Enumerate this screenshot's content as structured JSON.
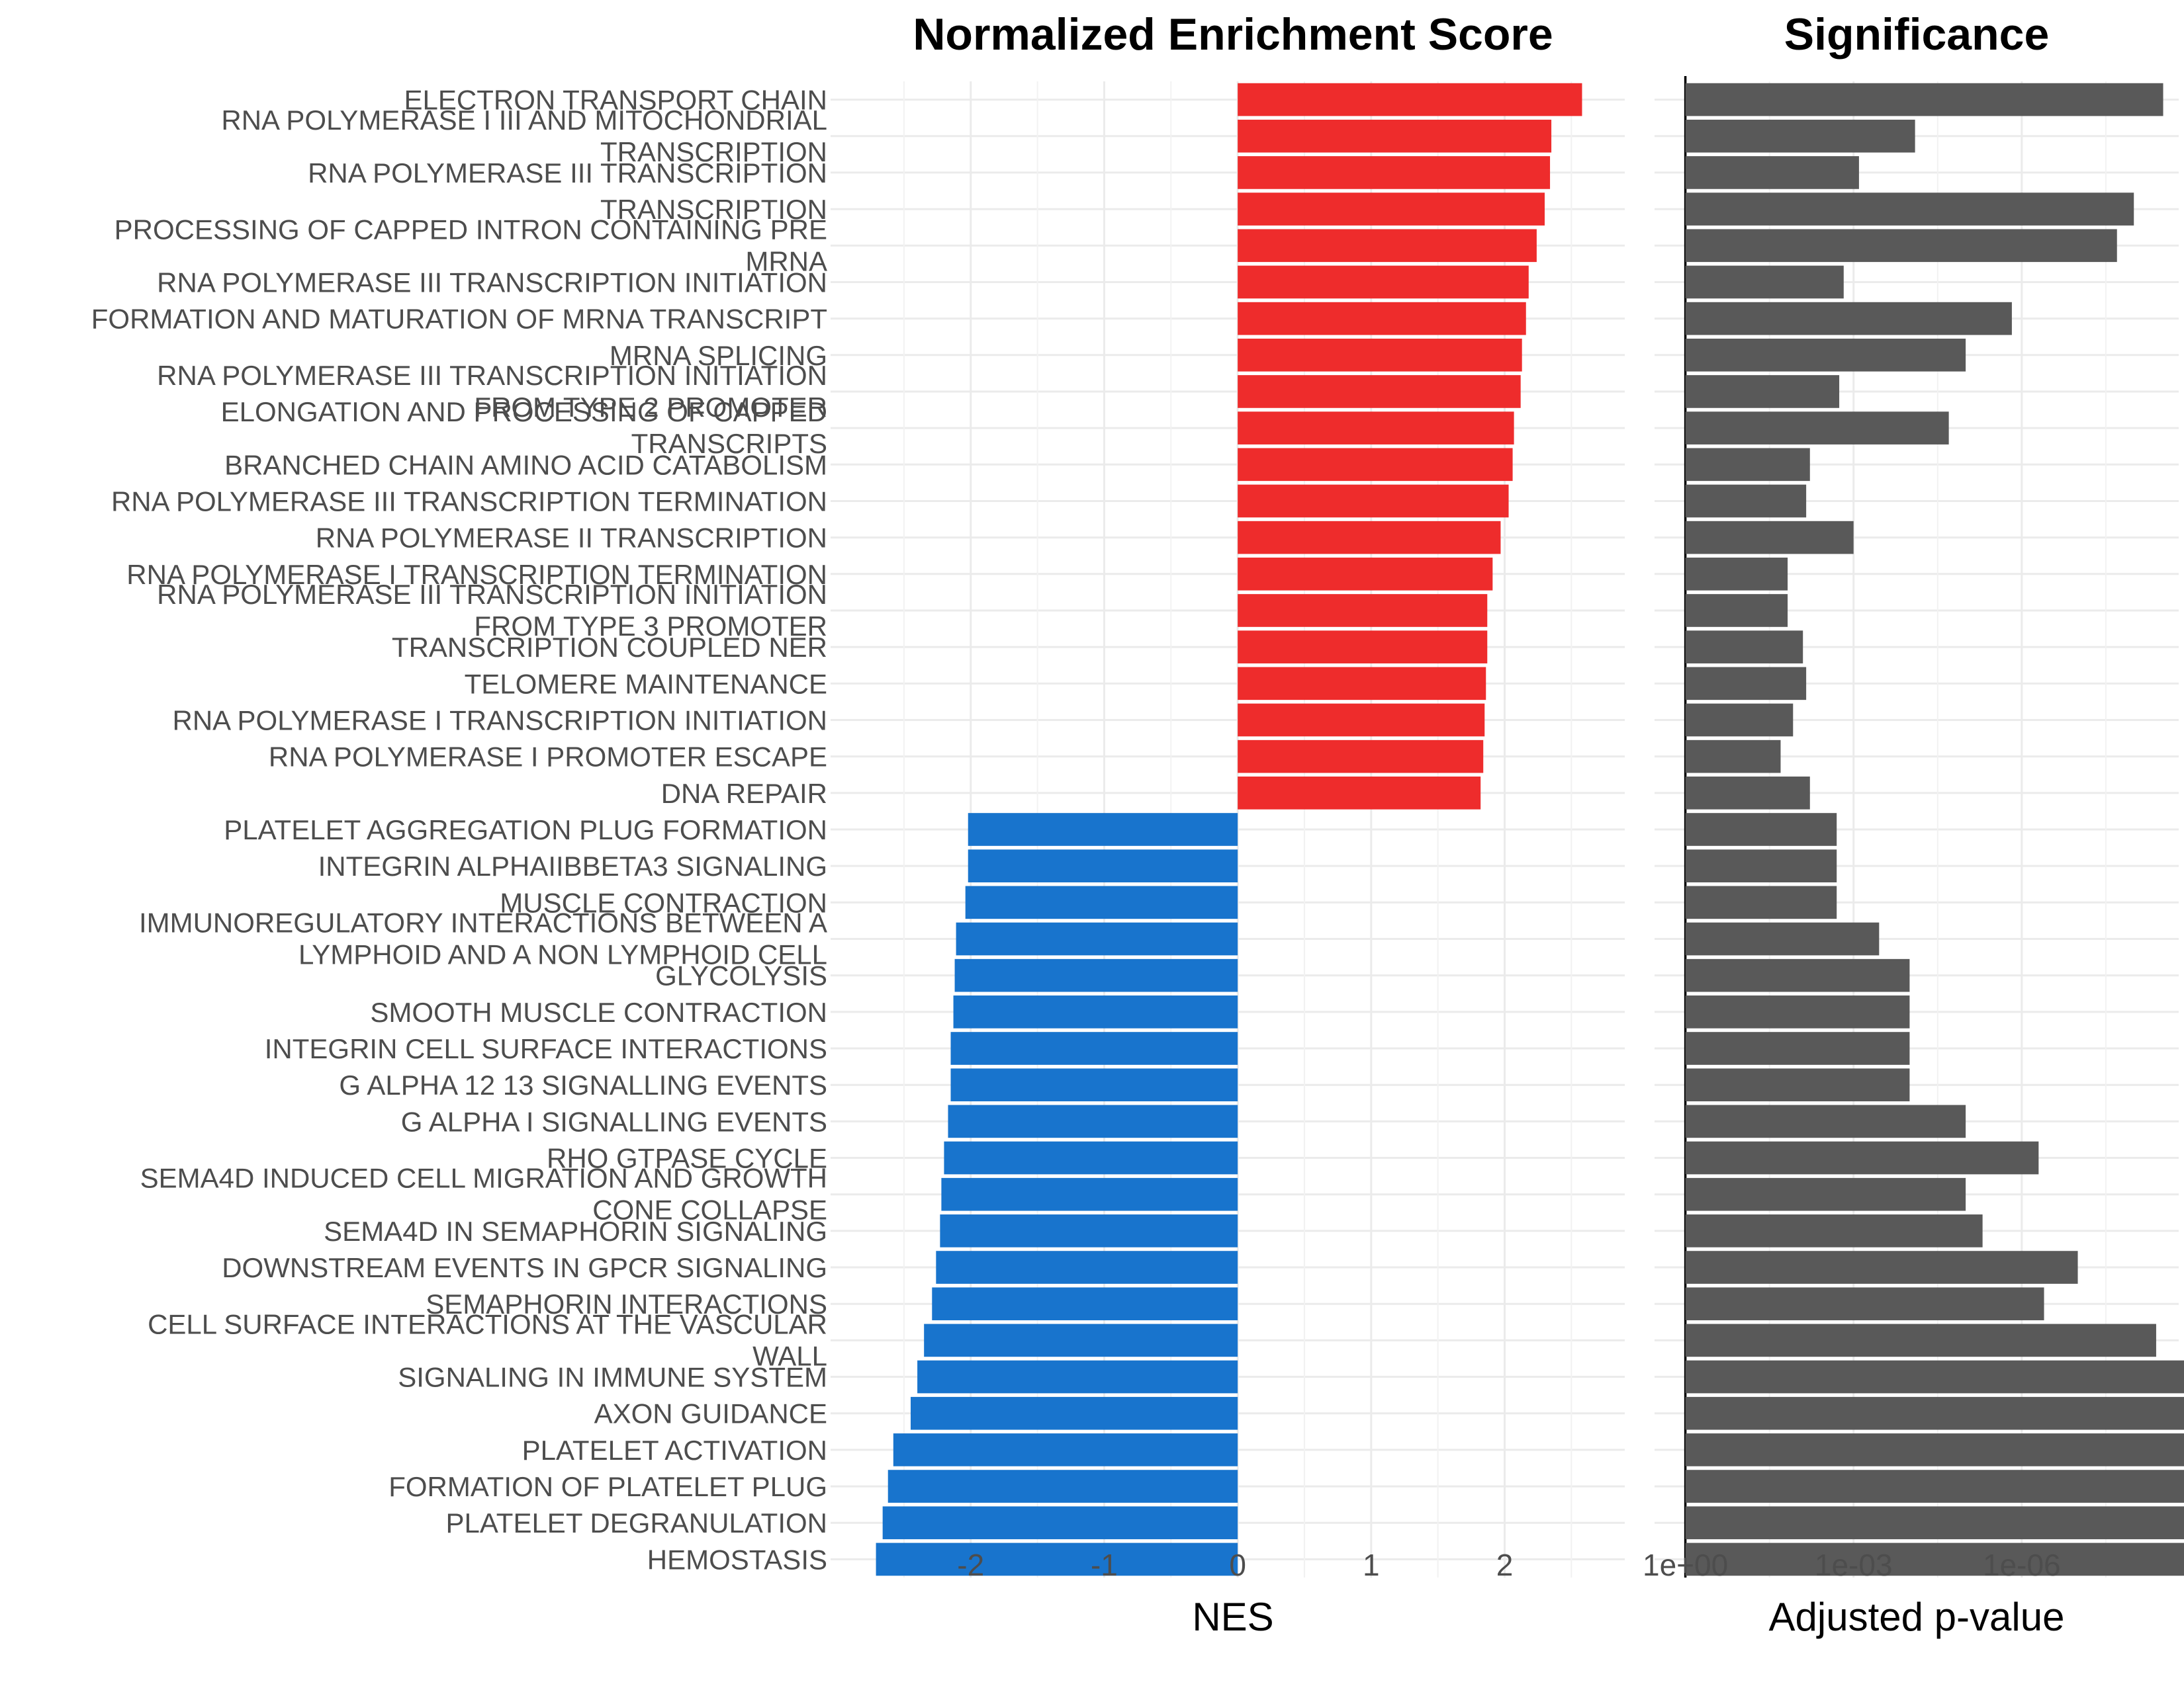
{
  "chart_data": [
    {
      "type": "bar",
      "orientation": "horizontal",
      "title": "Normalized Enrichment Score",
      "xlabel": "NES",
      "ylabel": "",
      "xlim": [
        -3.05,
        2.9
      ],
      "x_ticks": [
        -2,
        -1,
        0,
        1,
        2
      ],
      "x_tick_labels": [
        "-2",
        "-1",
        "0",
        "1",
        "2"
      ],
      "grid": true,
      "colors": {
        "positive": "#ee2c2c",
        "negative": "#1874cd"
      },
      "categories": [
        [
          "ELECTRON TRANSPORT CHAIN"
        ],
        [
          "RNA POLYMERASE I III AND MITOCHONDRIAL",
          "TRANSCRIPTION"
        ],
        [
          "RNA POLYMERASE III TRANSCRIPTION"
        ],
        [
          "TRANSCRIPTION"
        ],
        [
          "PROCESSING OF CAPPED INTRON CONTAINING PRE",
          "MRNA"
        ],
        [
          "RNA POLYMERASE III TRANSCRIPTION INITIATION"
        ],
        [
          "FORMATION AND MATURATION OF MRNA TRANSCRIPT"
        ],
        [
          "MRNA SPLICING"
        ],
        [
          "RNA POLYMERASE III TRANSCRIPTION INITIATION",
          "FROM TYPE 2 PROMOTER"
        ],
        [
          "ELONGATION AND PROCESSING OF CAPPED",
          "TRANSCRIPTS"
        ],
        [
          "BRANCHED CHAIN AMINO ACID CATABOLISM"
        ],
        [
          "RNA POLYMERASE III TRANSCRIPTION TERMINATION"
        ],
        [
          "RNA POLYMERASE II TRANSCRIPTION"
        ],
        [
          "RNA POLYMERASE I TRANSCRIPTION TERMINATION"
        ],
        [
          "RNA POLYMERASE III TRANSCRIPTION INITIATION",
          "FROM TYPE 3 PROMOTER"
        ],
        [
          "TRANSCRIPTION COUPLED NER"
        ],
        [
          "TELOMERE MAINTENANCE"
        ],
        [
          "RNA POLYMERASE I TRANSCRIPTION INITIATION"
        ],
        [
          "RNA POLYMERASE I PROMOTER ESCAPE"
        ],
        [
          "DNA REPAIR"
        ],
        [
          "PLATELET AGGREGATION PLUG FORMATION"
        ],
        [
          "INTEGRIN ALPHAIIBBETA3 SIGNALING"
        ],
        [
          "MUSCLE CONTRACTION"
        ],
        [
          "IMMUNOREGULATORY INTERACTIONS BETWEEN A",
          "LYMPHOID AND A NON LYMPHOID CELL"
        ],
        [
          "GLYCOLYSIS"
        ],
        [
          "SMOOTH MUSCLE CONTRACTION"
        ],
        [
          "INTEGRIN CELL SURFACE INTERACTIONS"
        ],
        [
          "G ALPHA 12 13 SIGNALLING EVENTS"
        ],
        [
          "G ALPHA I SIGNALLING EVENTS"
        ],
        [
          "RHO GTPASE CYCLE"
        ],
        [
          "SEMA4D INDUCED CELL MIGRATION AND GROWTH",
          "CONE COLLAPSE"
        ],
        [
          "SEMA4D IN SEMAPHORIN SIGNALING"
        ],
        [
          "DOWNSTREAM EVENTS IN GPCR SIGNALING"
        ],
        [
          "SEMAPHORIN INTERACTIONS"
        ],
        [
          "CELL SURFACE INTERACTIONS AT THE VASCULAR",
          "WALL"
        ],
        [
          "SIGNALING IN IMMUNE SYSTEM"
        ],
        [
          "AXON GUIDANCE"
        ],
        [
          "PLATELET ACTIVATION"
        ],
        [
          "FORMATION OF PLATELET PLUG"
        ],
        [
          "PLATELET DEGRANULATION"
        ],
        [
          "HEMOSTASIS"
        ]
      ],
      "values": [
        2.58,
        2.35,
        2.34,
        2.3,
        2.24,
        2.18,
        2.16,
        2.13,
        2.12,
        2.07,
        2.06,
        2.03,
        1.97,
        1.91,
        1.87,
        1.87,
        1.86,
        1.85,
        1.84,
        1.82,
        -2.02,
        -2.02,
        -2.04,
        -2.11,
        -2.12,
        -2.13,
        -2.15,
        -2.15,
        -2.17,
        -2.2,
        -2.22,
        -2.23,
        -2.26,
        -2.29,
        -2.35,
        -2.4,
        -2.45,
        -2.58,
        -2.62,
        -2.66,
        -2.71
      ]
    },
    {
      "type": "bar",
      "orientation": "horizontal",
      "title": "Significance",
      "xlabel": "Adjusted p-value",
      "x_scale": "-log10",
      "x_ticks": [
        1,
        0.001,
        1e-06
      ],
      "x_tick_labels": [
        "1e+00",
        "1e-03",
        "1e-06"
      ],
      "xlim_neglog10": [
        -0.55,
        8.8
      ],
      "grid": true,
      "color": "#595959",
      "p_values": [
        3e-09,
        8e-05,
        0.0008,
        1e-08,
        2e-08,
        0.0015,
        1.5e-06,
        1e-05,
        0.0018,
        2e-05,
        0.006,
        0.007,
        0.001,
        0.015,
        0.015,
        0.008,
        0.007,
        0.012,
        0.02,
        0.006,
        0.002,
        0.002,
        0.002,
        0.00035,
        0.0001,
        0.0001,
        0.0001,
        0.0001,
        1e-05,
        5e-07,
        1e-05,
        5e-06,
        1e-07,
        4e-07,
        4e-09,
        1e-09,
        1e-09,
        1e-09,
        1e-09,
        1e-09,
        1e-09
      ]
    }
  ]
}
